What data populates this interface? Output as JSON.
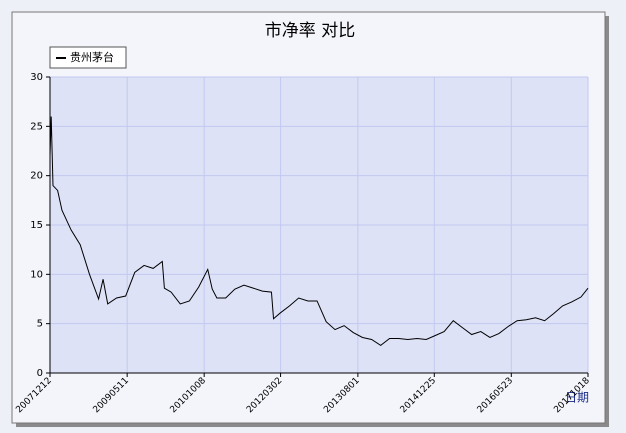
{
  "chart_data": {
    "type": "line",
    "title": "市净率 对比",
    "x_label": "日期",
    "x": [
      "20071212",
      "20071220",
      "20080101",
      "20080201",
      "20080301",
      "20080501",
      "20080701",
      "20080901",
      "20081101",
      "20081201",
      "20090101",
      "20090301",
      "20090501",
      "20090701",
      "20090901",
      "20091101",
      "20100101",
      "20100115",
      "20100301",
      "20100501",
      "20100701",
      "20100901",
      "20101101",
      "20101201",
      "20110101",
      "20110301",
      "20110501",
      "20110701",
      "20110901",
      "20111101",
      "20120101",
      "20120115",
      "20120301",
      "20120501",
      "20120701",
      "20120901",
      "20121101",
      "20130101",
      "20130301",
      "20130501",
      "20130701",
      "20130901",
      "20131101",
      "20140101",
      "20140301",
      "20140501",
      "20140701",
      "20140901",
      "20141101",
      "20150101",
      "20150301",
      "20150501",
      "20150701",
      "20150901",
      "20151101",
      "20160101",
      "20160301",
      "20160501",
      "20160701",
      "20160901",
      "20161101",
      "20170101",
      "20170301",
      "20170501",
      "20170701",
      "20170901",
      "20171018"
    ],
    "series": [
      {
        "name": "贵州茅台",
        "color": "#000000",
        "values": [
          22,
          26,
          19,
          18.5,
          16.5,
          14.5,
          13,
          10,
          7.5,
          9.5,
          7,
          7.6,
          7.8,
          10.2,
          10.9,
          10.6,
          11.3,
          8.6,
          8.2,
          7,
          7.3,
          8.7,
          10.5,
          8.5,
          7.6,
          7.6,
          8.5,
          8.9,
          8.6,
          8.3,
          8.2,
          5.5,
          6.1,
          6.8,
          7.6,
          7.3,
          7.3,
          5.2,
          4.4,
          4.8,
          4.1,
          3.6,
          3.4,
          2.8,
          3.5,
          3.5,
          3.4,
          3.5,
          3.4,
          3.8,
          4.2,
          5.3,
          4.6,
          3.9,
          4.2,
          3.6,
          4,
          4.7,
          5.3,
          5.4,
          5.6,
          5.3,
          6,
          6.8,
          7.2,
          7.7,
          8.6
        ]
      }
    ],
    "xlim": [
      "20071212",
      "20171018"
    ],
    "xticks": [
      "20071212",
      "20090511",
      "20101008",
      "20120302",
      "20130801",
      "20141225",
      "20160523",
      "20171018"
    ],
    "ylim": [
      0,
      30
    ],
    "yticks": [
      0,
      5,
      10,
      15,
      20,
      25,
      30
    ],
    "grid": true,
    "legend": "top-left"
  }
}
